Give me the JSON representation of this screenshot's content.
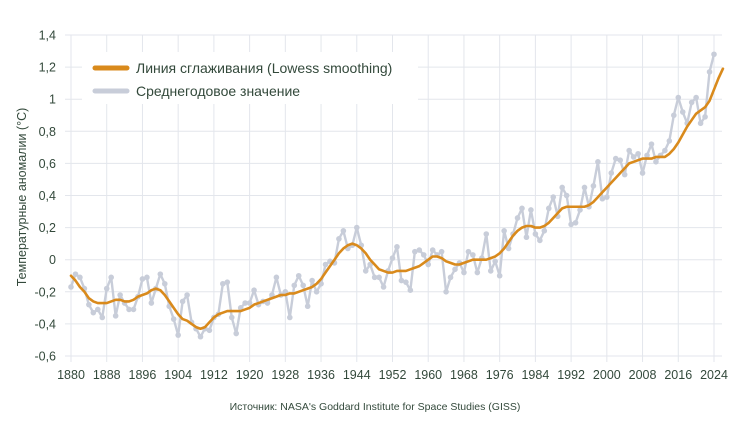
{
  "chart_data": {
    "type": "line",
    "title": "",
    "xlabel": "",
    "ylabel": "Температурные аномалии (°C)",
    "source": "Источник: NASA's Goddard Institute for Space Studies (GISS)",
    "xlim": [
      1880,
      2024
    ],
    "ylim": [
      -0.6,
      1.4
    ],
    "x_ticks": [
      1880,
      1888,
      1896,
      1904,
      1912,
      1920,
      1928,
      1936,
      1944,
      1952,
      1960,
      1968,
      1976,
      1984,
      1992,
      2000,
      2008,
      2016,
      2024
    ],
    "y_ticks": [
      -0.6,
      -0.4,
      -0.2,
      0,
      0.2,
      0.4,
      0.6,
      0.8,
      1,
      1.2,
      1.4
    ],
    "y_tick_labels": [
      "-0,6",
      "-0,4",
      "-0,2",
      "0",
      "0,2",
      "0,4",
      "0,6",
      "0,8",
      "1",
      "1,2",
      "1,4"
    ],
    "grid": true,
    "legend_position": "top-left",
    "colors": {
      "smoothing": "#d98a1c",
      "annual": "#c8cdd9",
      "grid": "#e3e6ec",
      "text": "#33493b"
    },
    "x_start": 1880,
    "series": [
      {
        "name": "Линия сглаживания (Lowess smoothing)",
        "values": [
          -0.1,
          -0.13,
          -0.17,
          -0.2,
          -0.24,
          -0.26,
          -0.27,
          -0.27,
          -0.27,
          -0.26,
          -0.25,
          -0.25,
          -0.26,
          -0.26,
          -0.25,
          -0.23,
          -0.22,
          -0.21,
          -0.19,
          -0.18,
          -0.19,
          -0.22,
          -0.26,
          -0.3,
          -0.34,
          -0.37,
          -0.38,
          -0.4,
          -0.42,
          -0.43,
          -0.42,
          -0.39,
          -0.36,
          -0.34,
          -0.33,
          -0.32,
          -0.32,
          -0.32,
          -0.32,
          -0.31,
          -0.3,
          -0.28,
          -0.27,
          -0.26,
          -0.25,
          -0.24,
          -0.23,
          -0.22,
          -0.22,
          -0.21,
          -0.21,
          -0.2,
          -0.19,
          -0.18,
          -0.17,
          -0.15,
          -0.12,
          -0.08,
          -0.04,
          0.0,
          0.04,
          0.07,
          0.09,
          0.1,
          0.09,
          0.07,
          0.04,
          0.0,
          -0.03,
          -0.06,
          -0.07,
          -0.08,
          -0.08,
          -0.07,
          -0.07,
          -0.07,
          -0.06,
          -0.05,
          -0.04,
          -0.02,
          0.0,
          0.02,
          0.02,
          0.01,
          -0.01,
          -0.02,
          -0.03,
          -0.03,
          -0.02,
          -0.01,
          0.0,
          0.0,
          0.0,
          0.0,
          0.01,
          0.02,
          0.04,
          0.07,
          0.11,
          0.15,
          0.18,
          0.2,
          0.21,
          0.21,
          0.2,
          0.2,
          0.21,
          0.23,
          0.26,
          0.29,
          0.32,
          0.33,
          0.33,
          0.33,
          0.33,
          0.33,
          0.34,
          0.36,
          0.39,
          0.42,
          0.45,
          0.48,
          0.51,
          0.54,
          0.57,
          0.6,
          0.61,
          0.62,
          0.63,
          0.63,
          0.63,
          0.64,
          0.64,
          0.64,
          0.66,
          0.69,
          0.73,
          0.78,
          0.83,
          0.87,
          0.91,
          0.93,
          0.95,
          0.99,
          1.06,
          1.13,
          1.19
        ]
      },
      {
        "name": "Среднегодовое значение",
        "values": [
          -0.17,
          -0.09,
          -0.11,
          -0.18,
          -0.28,
          -0.33,
          -0.31,
          -0.36,
          -0.18,
          -0.11,
          -0.35,
          -0.22,
          -0.27,
          -0.31,
          -0.31,
          -0.23,
          -0.12,
          -0.11,
          -0.27,
          -0.18,
          -0.09,
          -0.15,
          -0.29,
          -0.37,
          -0.47,
          -0.26,
          -0.22,
          -0.39,
          -0.43,
          -0.48,
          -0.43,
          -0.44,
          -0.36,
          -0.34,
          -0.15,
          -0.14,
          -0.36,
          -0.46,
          -0.3,
          -0.27,
          -0.27,
          -0.19,
          -0.28,
          -0.26,
          -0.27,
          -0.22,
          -0.11,
          -0.22,
          -0.2,
          -0.36,
          -0.16,
          -0.1,
          -0.16,
          -0.29,
          -0.13,
          -0.2,
          -0.15,
          -0.03,
          -0.01,
          -0.02,
          0.13,
          0.18,
          0.07,
          0.09,
          0.2,
          0.09,
          -0.07,
          -0.03,
          -0.11,
          -0.11,
          -0.17,
          -0.07,
          0.01,
          0.08,
          -0.13,
          -0.14,
          -0.19,
          0.05,
          0.06,
          0.03,
          -0.03,
          0.06,
          0.03,
          0.05,
          -0.2,
          -0.11,
          -0.06,
          -0.02,
          -0.08,
          0.05,
          0.03,
          -0.08,
          0.01,
          0.16,
          -0.07,
          -0.01,
          -0.1,
          0.18,
          0.07,
          0.16,
          0.26,
          0.32,
          0.14,
          0.31,
          0.16,
          0.12,
          0.18,
          0.32,
          0.39,
          0.27,
          0.45,
          0.4,
          0.22,
          0.23,
          0.31,
          0.45,
          0.33,
          0.46,
          0.61,
          0.38,
          0.39,
          0.54,
          0.63,
          0.62,
          0.53,
          0.68,
          0.64,
          0.66,
          0.54,
          0.65,
          0.72,
          0.61,
          0.65,
          0.68,
          0.74,
          0.9,
          1.01,
          0.92,
          0.85,
          0.98,
          1.01,
          0.85,
          0.89,
          1.17,
          1.28
        ]
      }
    ]
  }
}
